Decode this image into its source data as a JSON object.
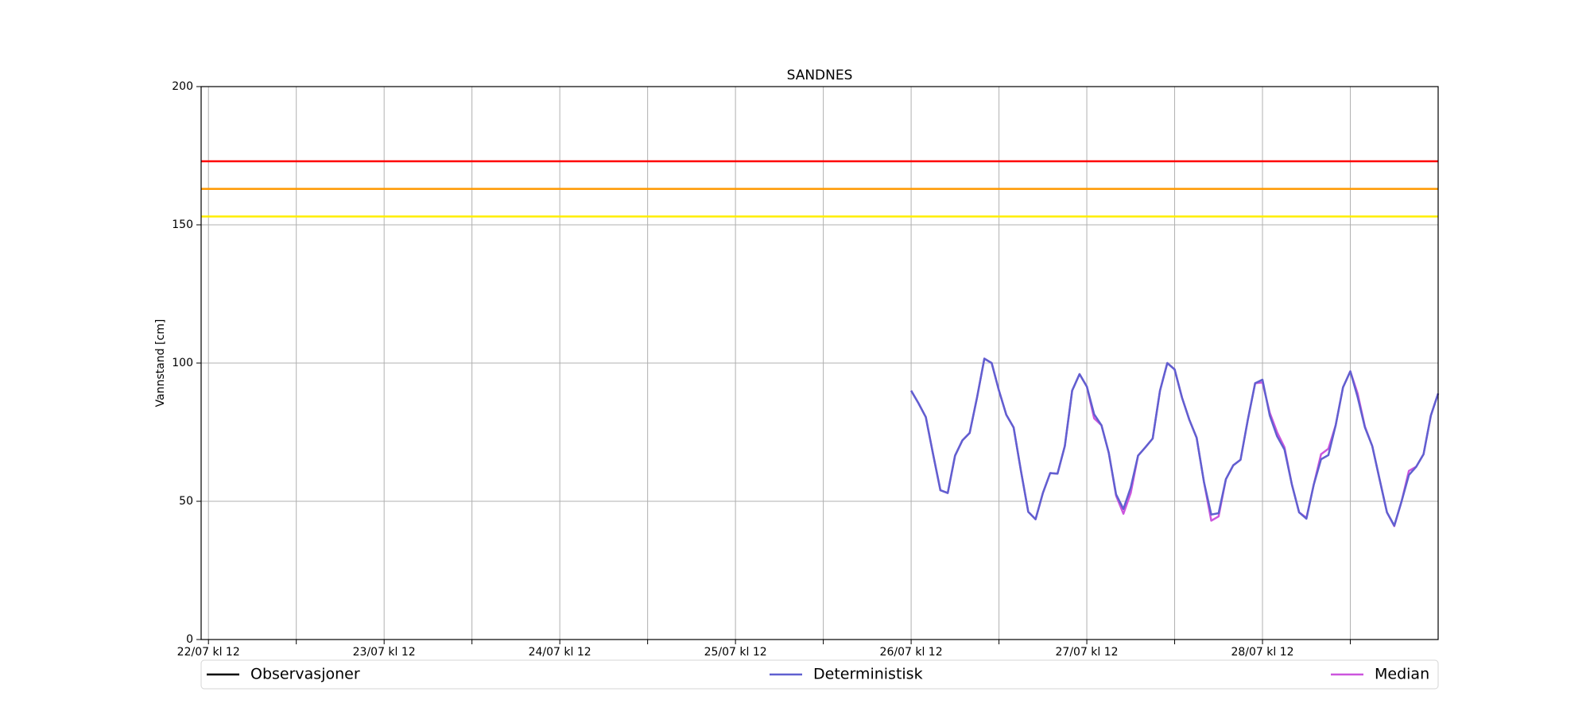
{
  "chart_data": {
    "type": "line",
    "title": "SANDNES",
    "ylabel": "Vannstand [cm]",
    "x": [
      "26/07 12:00",
      "26/07 13:00",
      "26/07 14:00",
      "26/07 15:00",
      "26/07 16:00",
      "26/07 17:00",
      "26/07 18:00",
      "26/07 19:00",
      "26/07 20:00",
      "26/07 21:00",
      "26/07 22:00",
      "26/07 23:00",
      "27/07 00:00",
      "27/07 01:00",
      "27/07 02:00",
      "27/07 03:00",
      "27/07 04:00",
      "27/07 05:00",
      "27/07 06:00",
      "27/07 07:00",
      "27/07 08:00",
      "27/07 09:00",
      "27/07 10:00",
      "27/07 11:00",
      "27/07 12:00",
      "27/07 13:00",
      "27/07 14:00",
      "27/07 15:00",
      "27/07 16:00",
      "27/07 17:00",
      "27/07 18:00",
      "27/07 19:00",
      "27/07 20:00",
      "27/07 21:00",
      "27/07 22:00",
      "27/07 23:00",
      "28/07 00:00",
      "28/07 01:00",
      "28/07 02:00",
      "28/07 03:00",
      "28/07 04:00",
      "28/07 05:00",
      "28/07 06:00",
      "28/07 07:00",
      "28/07 08:00",
      "28/07 09:00",
      "28/07 10:00",
      "28/07 11:00",
      "28/07 12:00",
      "28/07 13:00",
      "28/07 14:00",
      "28/07 15:00",
      "28/07 16:00",
      "28/07 17:00",
      "28/07 18:00",
      "28/07 19:00",
      "28/07 20:00",
      "28/07 21:00",
      "28/07 22:00",
      "28/07 23:00",
      "29/07 00:00",
      "29/07 01:00",
      "29/07 02:00",
      "29/07 03:00",
      "29/07 04:00",
      "29/07 05:00",
      "29/07 06:00",
      "29/07 07:00",
      "29/07 08:00",
      "29/07 09:00",
      "29/07 10:00",
      "29/07 11:00",
      "29/07 12:00"
    ],
    "series": [
      {
        "name": "Observasjoner",
        "color": "#000000",
        "values": [
          null,
          null,
          null,
          null,
          null,
          null,
          null,
          null,
          null,
          null,
          null,
          null,
          null,
          null,
          null,
          null,
          null,
          null,
          null,
          null,
          null,
          null,
          null,
          null,
          null,
          null,
          null,
          null,
          null,
          null,
          null,
          null,
          null,
          null,
          null,
          null,
          null,
          null,
          null,
          null,
          null,
          null,
          null,
          null,
          null,
          null,
          null,
          null,
          null,
          null,
          null,
          null,
          null,
          null,
          null,
          null,
          null,
          null,
          null,
          null,
          null,
          null,
          null,
          null,
          null,
          null,
          null,
          null,
          null,
          null,
          null,
          null,
          null
        ]
      },
      {
        "name": "Median",
        "color": "#cc55dd",
        "values": [
          90,
          85.5,
          80.5,
          67,
          54,
          53,
          66.5,
          72,
          74.7,
          87.6,
          101.6,
          100,
          90,
          81.3,
          76.7,
          61,
          46.2,
          43.5,
          53,
          60.2,
          60,
          70,
          90,
          96,
          91.5,
          80,
          77.5,
          67.5,
          52,
          45.5,
          53,
          66.5,
          69.5,
          72.7,
          90,
          100,
          97.7,
          87.5,
          79.5,
          73,
          57,
          43,
          44.5,
          58,
          63,
          65,
          79.5,
          92.7,
          93,
          82,
          75,
          69.5,
          56.2,
          46,
          44,
          56,
          67,
          69,
          77.5,
          91.2,
          97,
          89,
          77,
          70,
          58,
          46,
          41,
          50,
          61,
          62.5,
          67,
          81,
          89
        ]
      },
      {
        "name": "Deterministisk",
        "color": "#6060d0",
        "values": [
          90,
          85.5,
          80.5,
          67,
          54,
          53,
          66.5,
          72,
          74.7,
          87.6,
          101.6,
          100,
          90,
          81.3,
          76.7,
          61,
          46.2,
          43.5,
          53,
          60.2,
          60,
          70,
          90,
          96,
          91.5,
          81.5,
          77.5,
          67.5,
          52.5,
          47.2,
          55,
          66.5,
          69.5,
          72.7,
          90,
          100,
          97.7,
          87.5,
          79.5,
          73,
          57,
          45.2,
          45.7,
          58,
          63,
          65,
          79.5,
          92.7,
          94,
          81,
          73.5,
          68.7,
          56.2,
          46,
          43.7,
          56,
          65.2,
          66.7,
          77.5,
          91.2,
          97,
          87.7,
          76.7,
          70,
          58,
          46,
          41.2,
          50,
          59.5,
          62.5,
          67,
          81,
          89
        ]
      }
    ],
    "legend_order": [
      0,
      2,
      1
    ],
    "thresholds": [
      {
        "value": 173,
        "color": "#ff0000"
      },
      {
        "value": 163,
        "color": "#ff9900"
      },
      {
        "value": 153,
        "color": "#ffee00"
      }
    ],
    "xlim": [
      "22/07 11:00",
      "29/07 12:00"
    ],
    "xticks": [
      {
        "value": "22/07 12:00",
        "label": "22/07 kl 12"
      },
      {
        "value": "23/07 00:00",
        "label": null
      },
      {
        "value": "23/07 12:00",
        "label": "23/07 kl 12"
      },
      {
        "value": "24/07 00:00",
        "label": null
      },
      {
        "value": "24/07 12:00",
        "label": "24/07 kl 12"
      },
      {
        "value": "25/07 00:00",
        "label": null
      },
      {
        "value": "25/07 12:00",
        "label": "25/07 kl 12"
      },
      {
        "value": "26/07 00:00",
        "label": null
      },
      {
        "value": "26/07 12:00",
        "label": "26/07 kl 12"
      },
      {
        "value": "27/07 00:00",
        "label": null
      },
      {
        "value": "27/07 12:00",
        "label": "27/07 kl 12"
      },
      {
        "value": "28/07 00:00",
        "label": null
      },
      {
        "value": "28/07 12:00",
        "label": "28/07 kl 12"
      },
      {
        "value": "29/07 00:00",
        "label": null
      }
    ],
    "ylim": [
      0,
      200
    ],
    "yticks": [
      0,
      50,
      100,
      150,
      200
    ],
    "grid": true
  }
}
